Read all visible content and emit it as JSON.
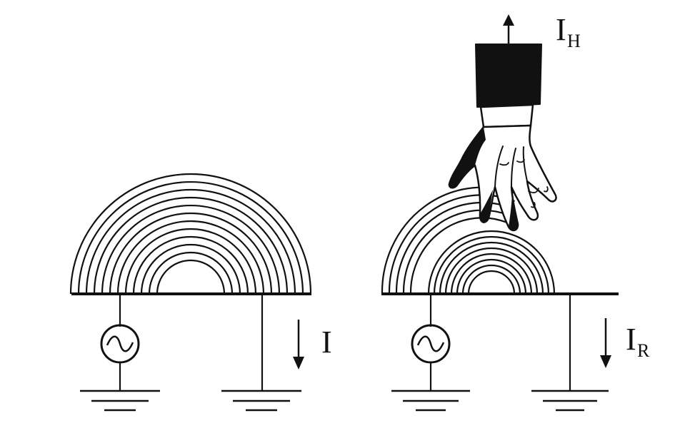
{
  "labels": {
    "left_current": "I",
    "right_current_main": "I",
    "right_current_sub": "R",
    "hand_current_main": "I",
    "hand_current_sub": "H"
  },
  "colors": {
    "ink": "#111111",
    "background": "#ffffff"
  },
  "icons": {
    "source": "ac-source-icon",
    "ground": "ground-icon",
    "hand": "hand-icon",
    "arrow": "arrow-icon"
  }
}
